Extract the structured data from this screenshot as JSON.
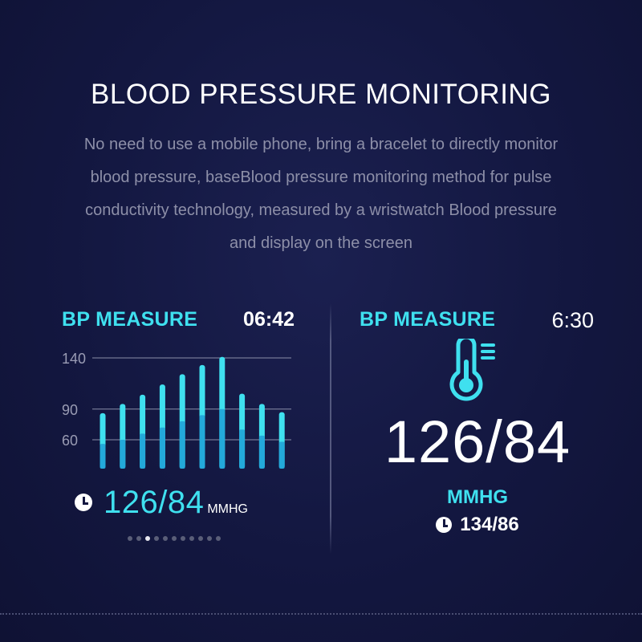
{
  "headline": "BLOOD PRESSURE MONITORING",
  "description": "No need to use a mobile phone, bring a bracelet to directly monitor blood pressure, baseBlood pressure monitoring method for pulse conductivity technology, measured by a wristwatch Blood pressure and display on the screen",
  "left_screen": {
    "title": "BP MEASURE",
    "time": "06:42",
    "reading": "126/84",
    "unit": "MMHG",
    "pager": {
      "count": 11,
      "active_index": 2
    }
  },
  "right_screen": {
    "title": "BP MEASURE",
    "time": "6:30",
    "reading": "126/84",
    "unit": "MMHG",
    "previous_reading": "134/86",
    "icon": "thermometer-icon"
  },
  "colors": {
    "accent": "#3fe0ef",
    "bar_dark": "#1e9fd6",
    "background": "#131740",
    "text_muted": "#8d8fa8"
  },
  "chart_data": {
    "type": "bar",
    "y_ticks": [
      140,
      90,
      60
    ],
    "ylim": [
      0,
      140
    ],
    "series": [
      {
        "values": [
          86,
          95,
          104,
          114,
          124,
          133,
          141,
          105,
          95,
          87
        ]
      },
      {
        "values": [
          56,
          60,
          66,
          72,
          78,
          84,
          90,
          70,
          64,
          58
        ]
      }
    ]
  }
}
